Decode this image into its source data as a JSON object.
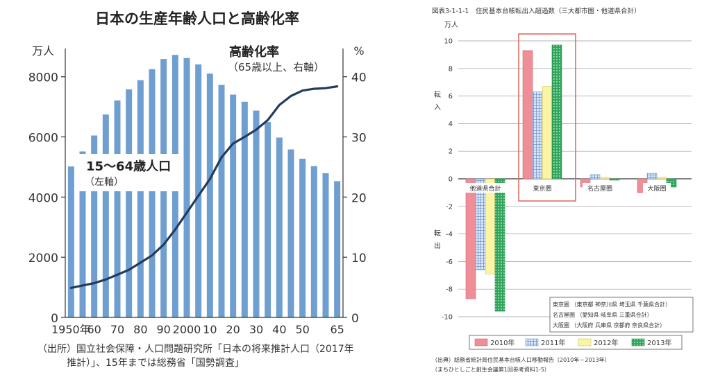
{
  "chart_data": [
    {
      "type": "bar",
      "title": "日本の生産年齢人口と高齢化率",
      "y_unit_left": "万人",
      "y_unit_right": "%",
      "yticks_left": [
        "0",
        "2000",
        "4000",
        "6000",
        "8000"
      ],
      "yticks_right": [
        "0",
        "10",
        "20",
        "30",
        "40"
      ],
      "ylim_left": [
        0,
        8800
      ],
      "ylim_right": [
        0,
        44
      ],
      "x_tick_labels": [
        "1950年",
        "60",
        "70",
        "80",
        "90",
        "2000",
        "10",
        "20",
        "30",
        "40",
        "50",
        "65"
      ],
      "years": [
        1950,
        1955,
        1960,
        1965,
        1970,
        1975,
        1980,
        1985,
        1990,
        1995,
        2000,
        2005,
        2010,
        2015,
        2020,
        2025,
        2030,
        2035,
        2040,
        2045,
        2050,
        2055,
        2060,
        2065
      ],
      "series": [
        {
          "name": "15〜64歳人口",
          "note": "（左軸）",
          "axis": "left",
          "type": "bar",
          "values": [
            5017,
            5517,
            6047,
            6744,
            7212,
            7581,
            7884,
            8251,
            8590,
            8726,
            8622,
            8409,
            8103,
            7728,
            7406,
            7170,
            6875,
            6494,
            5978,
            5584,
            5275,
            5028,
            4793,
            4529
          ]
        },
        {
          "name": "高齢化率",
          "note": "（65歳以上、右軸）",
          "axis": "right",
          "type": "line",
          "values": [
            4.9,
            5.3,
            5.7,
            6.3,
            7.1,
            7.9,
            9.1,
            10.3,
            12.1,
            14.6,
            17.4,
            20.2,
            23.0,
            26.6,
            28.9,
            30.0,
            31.2,
            32.8,
            35.3,
            36.8,
            37.7,
            38.0,
            38.1,
            38.4
          ]
        }
      ],
      "colors": {
        "bar": "#6f9fd0",
        "line": "#233b5e"
      },
      "grid": false,
      "source_lines": [
        "（出所）国立社会保障・人口問題研究所「日本の将来推計人口（2017年",
        "推計）」、15年までは総務省「国勢調査」"
      ]
    },
    {
      "type": "bar",
      "title": "図表3-1-1-1　住民基本台帳転出入超過数（三大都市圏・他道県合計）",
      "y_unit": "万人",
      "ylabel_positive": [
        "転",
        "入"
      ],
      "ylabel_negative": [
        "転",
        "出"
      ],
      "ylim": [
        -10,
        10
      ],
      "yticks": [
        "-10",
        "-8",
        "-6",
        "-4",
        "-2",
        "0",
        "2",
        "4",
        "6",
        "8",
        "10"
      ],
      "categories": [
        "他道県合計",
        "東京圏",
        "名古屋圏",
        "大阪圏"
      ],
      "highlighted_category": "東京圏",
      "series": [
        {
          "name": "2010年",
          "values": [
            -8.7,
            9.3,
            -0.6,
            -1.0
          ],
          "color": "#ef8e96"
        },
        {
          "name": "2011年",
          "values": [
            -6.6,
            6.3,
            0.3,
            0.4
          ],
          "color": "#a7c3ea"
        },
        {
          "name": "2012年",
          "values": [
            -6.9,
            6.7,
            0.1,
            0.1
          ],
          "color": "#fbf4a6"
        },
        {
          "name": "2013年",
          "values": [
            -9.6,
            9.7,
            -0.1,
            -0.6
          ],
          "color": "#3eb467"
        }
      ],
      "grid": true,
      "annotation_lines": [
        "東京圏 （東京都 神奈川県 埼玉県 千葉県合計）",
        "名古屋圏 （愛知県 岐阜県 三重県合計）",
        "大阪圏 （大阪府 兵庫県 京都府 奈良県合計）"
      ],
      "source_lines": [
        "（出典）総務省統計局住民基本台帳人口移動報告（2010年－2013年）",
        "（まちひとしごと創生会議第1回参考資料1-5）"
      ]
    }
  ]
}
